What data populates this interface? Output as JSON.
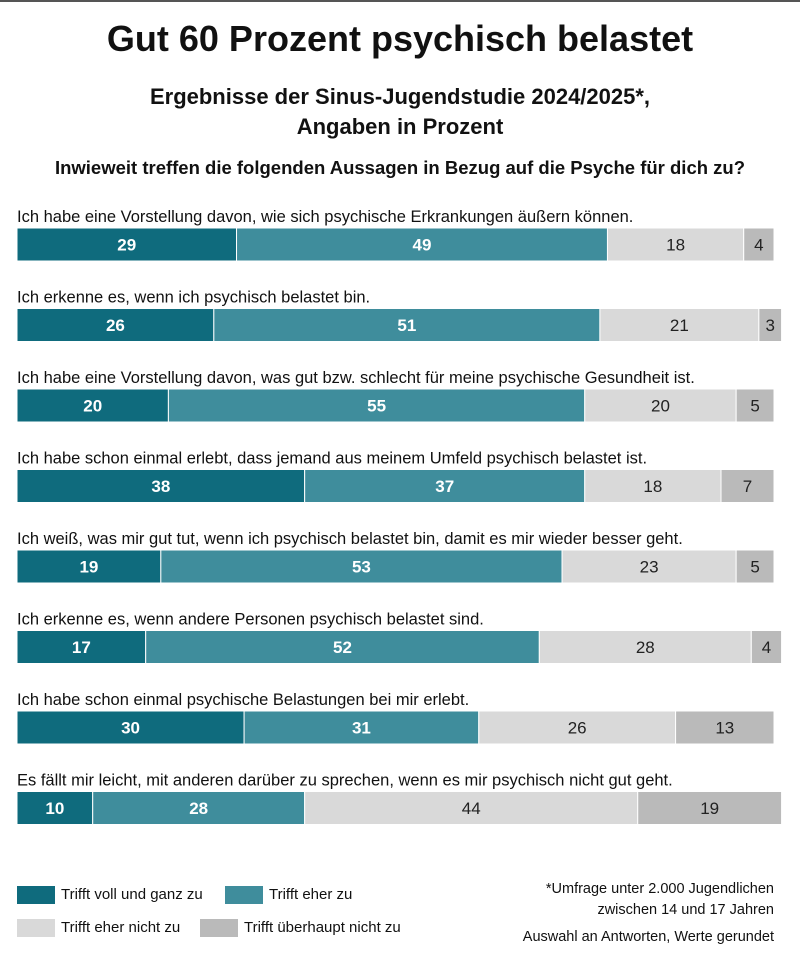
{
  "title": "Gut 60 Prozent psychisch belastet",
  "subtitle": "Ergebnisse der Sinus-Jugendstudie 2024/2025*, Angaben in Prozent",
  "question": "Inwieweit treffen die folgenden Aussagen in Bezug auf die Psyche für dich zu?",
  "footnote": {
    "line1": "*Umfrage unter 2.000 Jugendlichen",
    "line2": "zwischen 14 und 17 Jahren",
    "line3": "Auswahl an Antworten, Werte gerundet"
  },
  "colors": {
    "trifft_voll": "#0f6b7d",
    "trifft_eher": "#3f8d9c",
    "trifft_eher_nicht": "#d9d9d9",
    "trifft_ueberhaupt_nicht": "#bababa"
  },
  "chart_data": {
    "type": "bar",
    "orientation": "horizontal",
    "stacked": true,
    "xlim": [
      0,
      100
    ],
    "categories": [
      "Ich habe eine Vorstellung davon, wie sich psychische Erkrankungen äußern können.",
      "Ich erkenne es, wenn ich psychisch belastet bin.",
      "Ich habe eine Vorstellung davon, was gut bzw. schlecht für meine psychische Gesundheit ist.",
      "Ich habe schon einmal erlebt, dass jemand aus meinem Umfeld psychisch belastet ist.",
      "Ich weiß, was mir gut tut, wenn ich psychisch belastet bin, damit es mir wieder besser geht.",
      "Ich erkenne es, wenn andere Personen psychisch belastet sind.",
      "Ich habe schon einmal psychische Belastungen bei mir erlebt.",
      "Es fällt mir leicht, mit anderen darüber zu sprechen, wenn es mir psychisch nicht gut geht."
    ],
    "series": [
      {
        "name": "Trifft voll und ganz zu",
        "color": "#0f6b7d",
        "label_color": "#ffffff",
        "values": [
          29,
          26,
          20,
          38,
          19,
          17,
          30,
          10
        ]
      },
      {
        "name": "Trifft eher zu",
        "color": "#3f8d9c",
        "label_color": "#ffffff",
        "values": [
          49,
          51,
          55,
          37,
          53,
          52,
          31,
          28
        ]
      },
      {
        "name": "Trifft eher nicht zu",
        "color": "#d9d9d9",
        "label_color": "#222222",
        "values": [
          18,
          21,
          20,
          18,
          23,
          28,
          26,
          44
        ]
      },
      {
        "name": "Trifft überhaupt nicht zu",
        "color": "#bababa",
        "label_color": "#222222",
        "values": [
          4,
          3,
          5,
          7,
          5,
          4,
          13,
          19
        ]
      }
    ],
    "legend_position": "bottom-left",
    "grid": false
  }
}
